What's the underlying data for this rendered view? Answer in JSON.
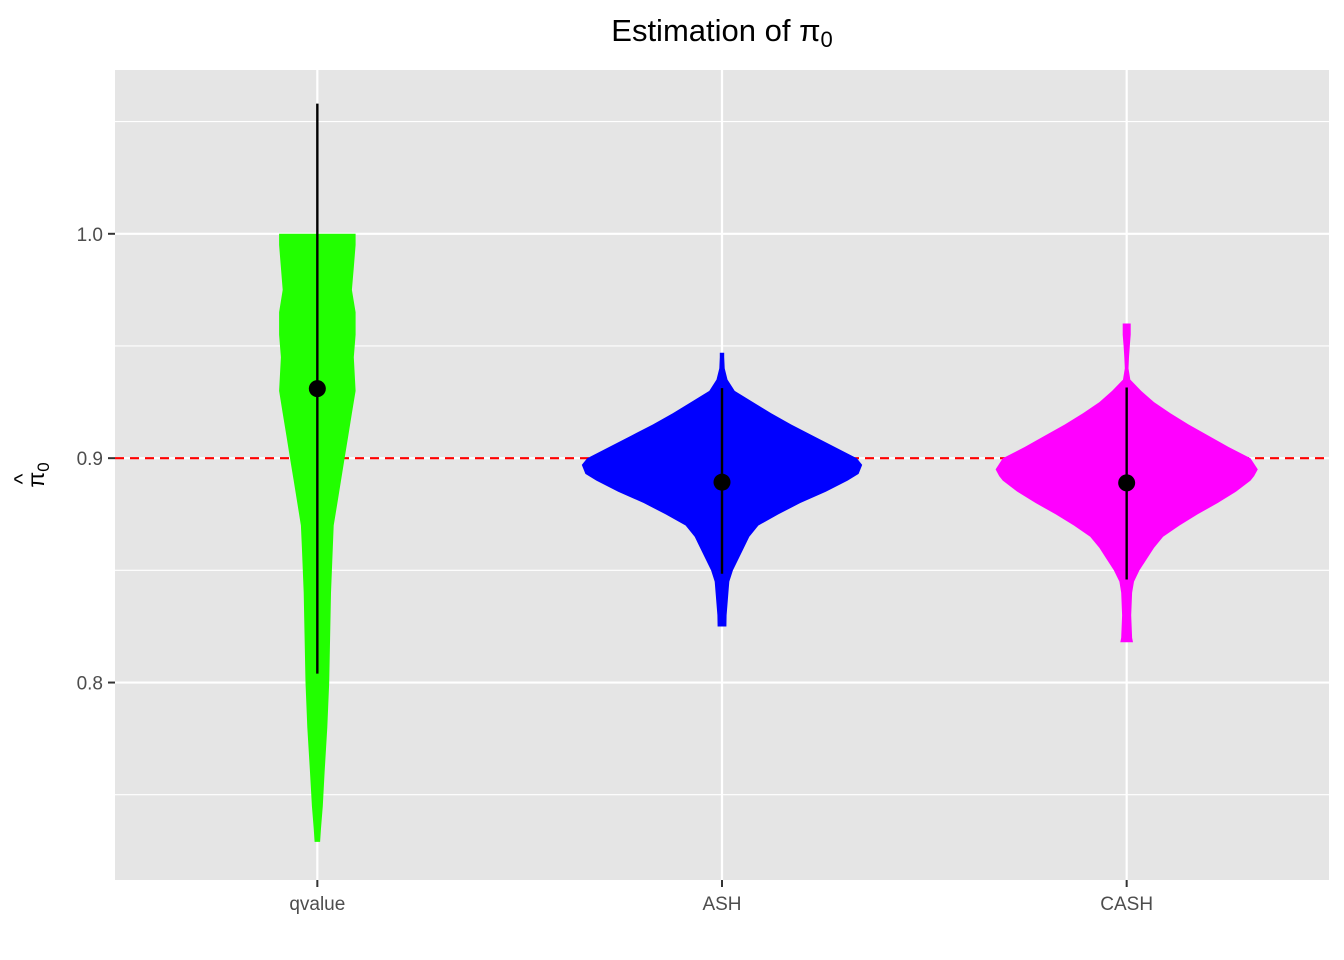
{
  "chart_data": {
    "type": "violin",
    "title_main": "Estimation of ",
    "title_symbol": "π",
    "title_subscript": "0",
    "ylabel_hat": "^",
    "ylabel_symbol": "π",
    "ylabel_subscript": "0",
    "xlabel": "",
    "categories": [
      "qvalue",
      "ASH",
      "CASH"
    ],
    "ylim": [
      0.712,
      1.073
    ],
    "yticks": [
      0.8,
      0.9,
      1.0
    ],
    "ytick_labels": [
      "0.8",
      "0.9",
      "1.0"
    ],
    "grid": true,
    "legend": "none",
    "reference_line": {
      "y": 0.9,
      "color": "#ff0000",
      "style": "dashed"
    },
    "series": [
      {
        "category": "qvalue",
        "fill": "#22ff00",
        "summary": {
          "mean": 0.931,
          "lower": 0.804,
          "upper": 1.058
        },
        "density": [
          [
            1.0,
            0.21
          ],
          [
            0.995,
            0.21
          ],
          [
            0.985,
            0.2
          ],
          [
            0.975,
            0.19
          ],
          [
            0.965,
            0.21
          ],
          [
            0.955,
            0.21
          ],
          [
            0.945,
            0.2
          ],
          [
            0.93,
            0.21
          ],
          [
            0.92,
            0.19
          ],
          [
            0.91,
            0.17
          ],
          [
            0.9,
            0.15
          ],
          [
            0.89,
            0.13
          ],
          [
            0.88,
            0.11
          ],
          [
            0.87,
            0.09
          ],
          [
            0.86,
            0.085
          ],
          [
            0.85,
            0.08
          ],
          [
            0.84,
            0.075
          ],
          [
            0.82,
            0.07
          ],
          [
            0.8,
            0.065
          ],
          [
            0.78,
            0.055
          ],
          [
            0.76,
            0.04
          ],
          [
            0.745,
            0.03
          ],
          [
            0.735,
            0.02
          ],
          [
            0.729,
            0.015
          ]
        ]
      },
      {
        "category": "ASH",
        "fill": "#0000ff",
        "summary": {
          "mean": 0.8893,
          "lower": 0.8485,
          "upper": 0.9312
        },
        "density": [
          [
            0.947,
            0.012
          ],
          [
            0.945,
            0.012
          ],
          [
            0.94,
            0.015
          ],
          [
            0.935,
            0.03
          ],
          [
            0.93,
            0.07
          ],
          [
            0.925,
            0.17
          ],
          [
            0.92,
            0.27
          ],
          [
            0.915,
            0.38
          ],
          [
            0.91,
            0.5
          ],
          [
            0.905,
            0.62
          ],
          [
            0.9,
            0.74
          ],
          [
            0.897,
            0.77
          ],
          [
            0.893,
            0.75
          ],
          [
            0.89,
            0.69
          ],
          [
            0.885,
            0.57
          ],
          [
            0.88,
            0.43
          ],
          [
            0.875,
            0.31
          ],
          [
            0.87,
            0.2
          ],
          [
            0.865,
            0.15
          ],
          [
            0.86,
            0.12
          ],
          [
            0.855,
            0.09
          ],
          [
            0.85,
            0.06
          ],
          [
            0.845,
            0.04
          ],
          [
            0.84,
            0.035
          ],
          [
            0.835,
            0.03
          ],
          [
            0.83,
            0.025
          ],
          [
            0.825,
            0.024
          ]
        ]
      },
      {
        "category": "CASH",
        "fill": "#ff00ff",
        "summary": {
          "mean": 0.889,
          "lower": 0.8459,
          "upper": 0.9315
        },
        "density": [
          [
            0.96,
            0.022
          ],
          [
            0.955,
            0.022
          ],
          [
            0.95,
            0.017
          ],
          [
            0.945,
            0.013
          ],
          [
            0.94,
            0.01
          ],
          [
            0.935,
            0.02
          ],
          [
            0.93,
            0.08
          ],
          [
            0.925,
            0.15
          ],
          [
            0.92,
            0.24
          ],
          [
            0.915,
            0.34
          ],
          [
            0.91,
            0.45
          ],
          [
            0.905,
            0.56
          ],
          [
            0.9,
            0.68
          ],
          [
            0.895,
            0.72
          ],
          [
            0.892,
            0.7
          ],
          [
            0.89,
            0.68
          ],
          [
            0.885,
            0.6
          ],
          [
            0.88,
            0.5
          ],
          [
            0.875,
            0.39
          ],
          [
            0.87,
            0.29
          ],
          [
            0.865,
            0.2
          ],
          [
            0.86,
            0.15
          ],
          [
            0.855,
            0.11
          ],
          [
            0.85,
            0.07
          ],
          [
            0.845,
            0.04
          ],
          [
            0.84,
            0.03
          ],
          [
            0.83,
            0.025
          ],
          [
            0.82,
            0.03
          ],
          [
            0.818,
            0.035
          ]
        ]
      }
    ]
  }
}
